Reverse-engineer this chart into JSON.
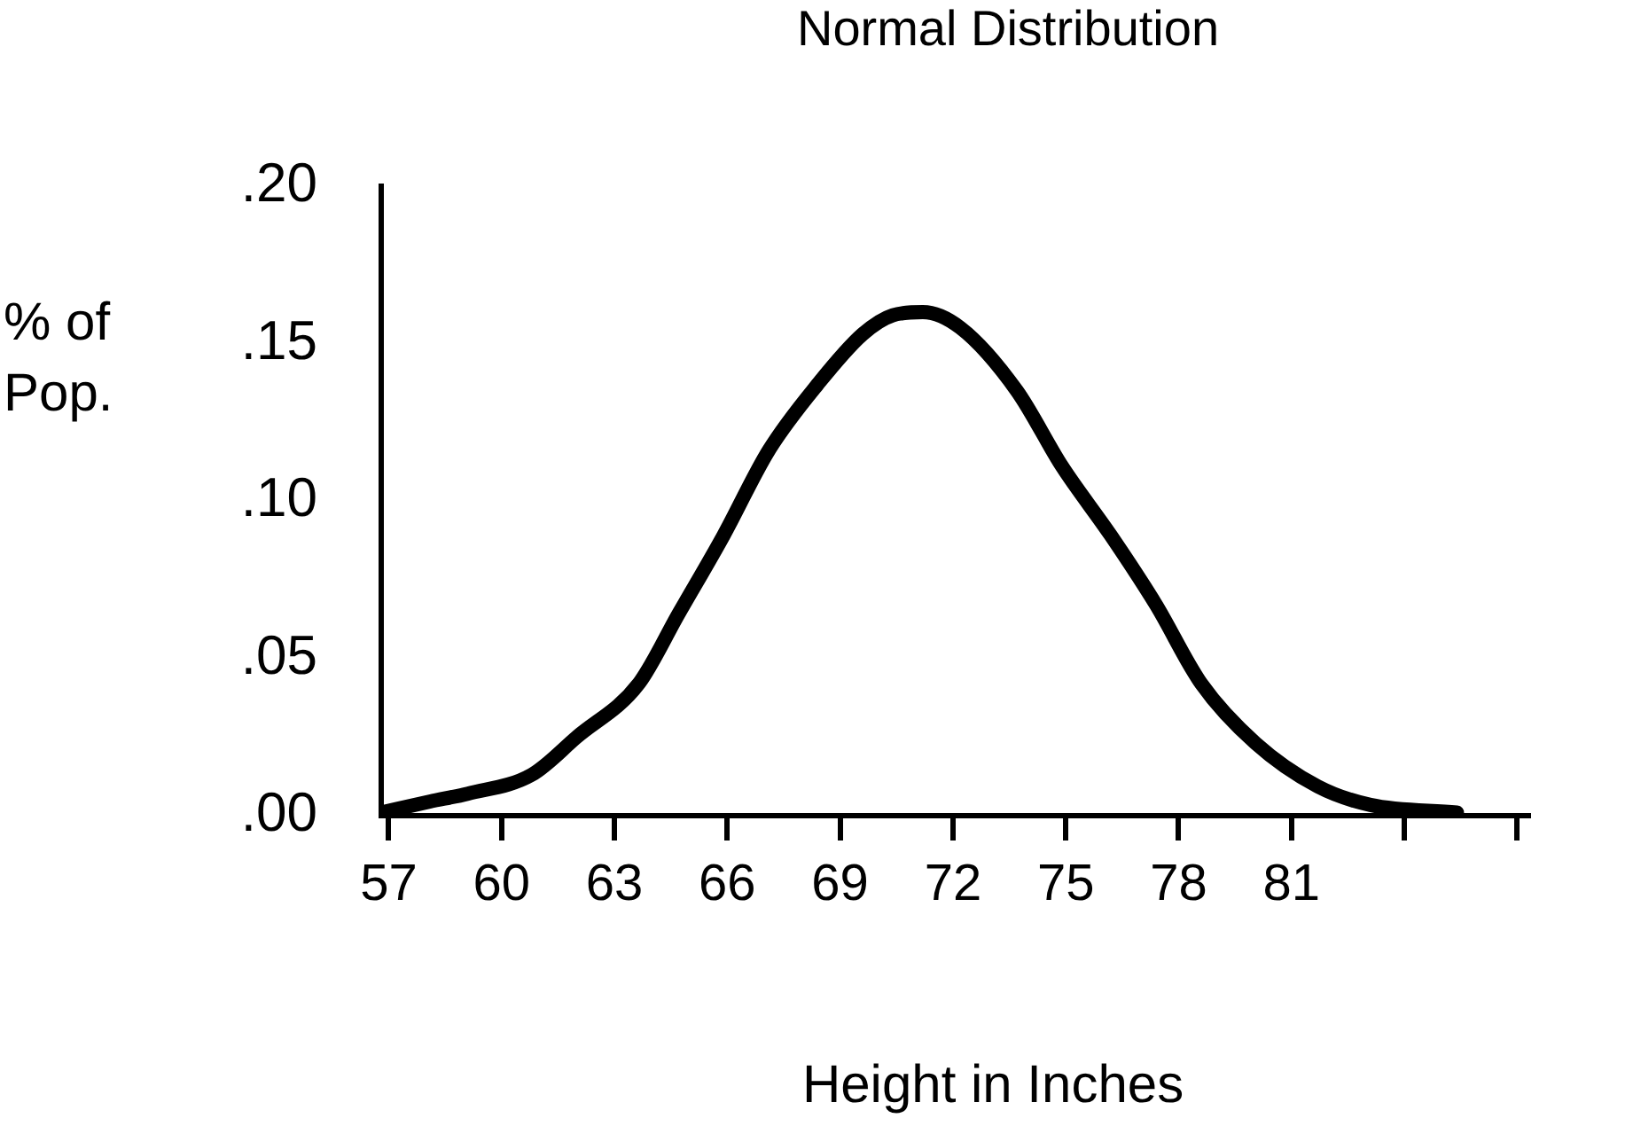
{
  "chart_data": {
    "type": "line",
    "title": "Normal Distribution",
    "xlabel": "Height in Inches",
    "ylabel": "% of Pop.",
    "x": [
      56.8,
      58.1,
      59.1,
      60.8,
      62.0,
      63.65,
      64.7,
      65.9,
      67.1,
      68.4,
      69.6,
      70.4,
      71.2,
      72.2,
      73.7,
      74.9,
      76.2,
      77.4,
      78.6,
      80.05,
      81.7,
      83.1,
      85.4
    ],
    "series": [
      {
        "color": "#000000",
        "values": [
          0.001,
          0.0045,
          0.007,
          0.013,
          0.025,
          0.042,
          0.064,
          0.089,
          0.116,
          0.137,
          0.153,
          0.159,
          0.16,
          0.155,
          0.135,
          0.111,
          0.089,
          0.067,
          0.042,
          0.023,
          0.0093,
          0.0034,
          0.001
        ]
      }
    ],
    "xlim": [
      56.8,
      87.3
    ],
    "xticks": [
      57,
      60,
      63,
      66,
      69,
      72,
      75,
      78,
      81,
      {
        "value": 84,
        "label": null
      },
      {
        "value": 87,
        "label": null
      }
    ],
    "ylim": [
      0,
      0.2
    ],
    "yticks": [
      {
        "value": 0,
        "label": ".00"
      },
      {
        "value": 0.05,
        "label": ".05"
      },
      {
        "value": 0.1,
        "label": ".10"
      },
      {
        "value": 0.15,
        "label": ".15"
      },
      {
        "value": 0.2,
        "label": ".20"
      }
    ],
    "grid": false,
    "legend": false,
    "marker": "none",
    "line_style": "solid"
  }
}
